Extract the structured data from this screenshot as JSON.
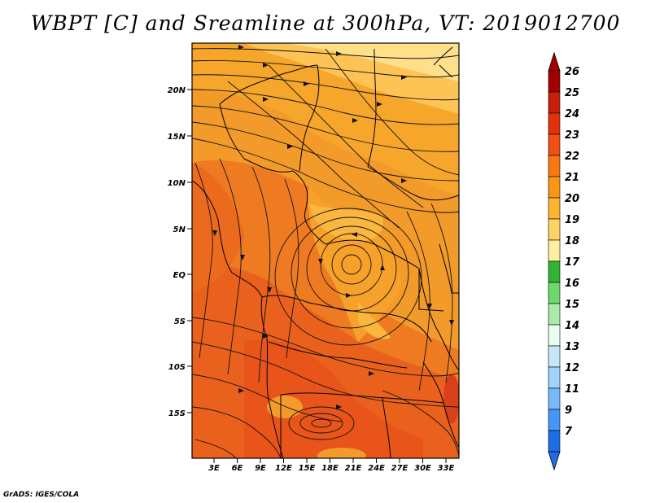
{
  "title": "WBPT [C] and Sreamline at 300hPa, VT: 2019012700",
  "credit": "GrADS: IGES/COLA",
  "map": {
    "lon_labels": [
      "3E",
      "6E",
      "9E",
      "12E",
      "15E",
      "18E",
      "21E",
      "24E",
      "27E",
      "30E",
      "33E"
    ],
    "lat_labels": [
      "20N",
      "15N",
      "10N",
      "5N",
      "EQ",
      "5S",
      "10S",
      "15S"
    ],
    "field": "wet-bulb potential temperature at 300hPa with streamlines",
    "features": [
      "cyclonic circulation center near 20E, 1N",
      "cooler air (18-20C) in the north and northeast",
      "warmer air (23-24C) in the southwest"
    ]
  },
  "colorbar": {
    "labels": [
      "26",
      "25",
      "24",
      "23",
      "22",
      "21",
      "20",
      "19",
      "18",
      "17",
      "16",
      "15",
      "14",
      "13",
      "12",
      "11",
      "9",
      "7"
    ],
    "colors": [
      "#a50000",
      "#c81e0a",
      "#e1320a",
      "#f05014",
      "#fa7814",
      "#fa9614",
      "#ffb432",
      "#ffd264",
      "#fff0a0",
      "#32b432",
      "#6ed76e",
      "#aaeaaa",
      "#e6fff0",
      "#c8e6fa",
      "#a0d2fa",
      "#78b9fa",
      "#4696f5",
      "#1e6ee6"
    ],
    "top_arrow_color": "#a50000",
    "bottom_arrow_color": "#1e6ee6"
  },
  "colors": {
    "cool_band": "#ffe08a",
    "mid_band": "#f7a428",
    "warm_band": "#ee7722",
    "hot_band": "#e8541a"
  }
}
